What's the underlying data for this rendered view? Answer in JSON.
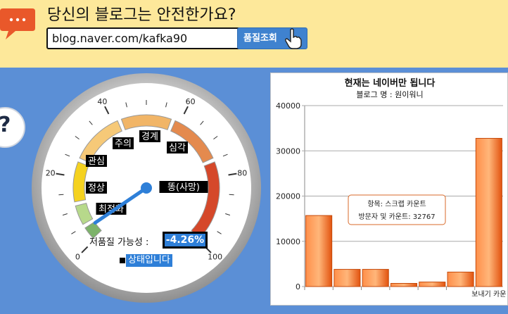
{
  "header": {
    "title": "당신의 블로그는 안전한가요?",
    "input_value": "blog.naver.com/kafka90",
    "check_button_label": "품질조회"
  },
  "help": {
    "glyph": "?"
  },
  "gauge": {
    "value": 4,
    "zones": [
      {
        "label": "최적화",
        "color": "#7db36a"
      },
      {
        "label": "정상",
        "color": "#b7d98b"
      },
      {
        "label": "관심",
        "color": "#f5d21f"
      },
      {
        "label": "주의",
        "color": "#f6c978"
      },
      {
        "label": "경계",
        "color": "#f1b567"
      },
      {
        "label": "심각",
        "color": "#e48a4e"
      },
      {
        "label": "똥(사망)",
        "color": "#d5482a"
      }
    ],
    "ticks": [
      "0",
      "20",
      "40",
      "60",
      "80",
      "100"
    ],
    "probability_label": "저품질 가능성 :",
    "probability_value": "-4.26%",
    "status_text": "상태입니다"
  },
  "chart_data": {
    "type": "bar",
    "title": "현재는 네이버만 됩니다",
    "subtitle": "블로그 명 : 원이워니",
    "ylim": [
      0,
      40000
    ],
    "yticks": [
      "0",
      "10000",
      "20000",
      "30000",
      "40000"
    ],
    "categories": [
      "",
      "",
      "",
      "",
      "",
      "",
      "보내기 카운"
    ],
    "values": [
      15700,
      3800,
      3800,
      700,
      1000,
      3200,
      32767
    ],
    "bar_color": "#f26b1d",
    "tooltip": {
      "line1": "항목: 스크랩 카운트",
      "line2": "방문자 및 카운트: 32767"
    }
  }
}
